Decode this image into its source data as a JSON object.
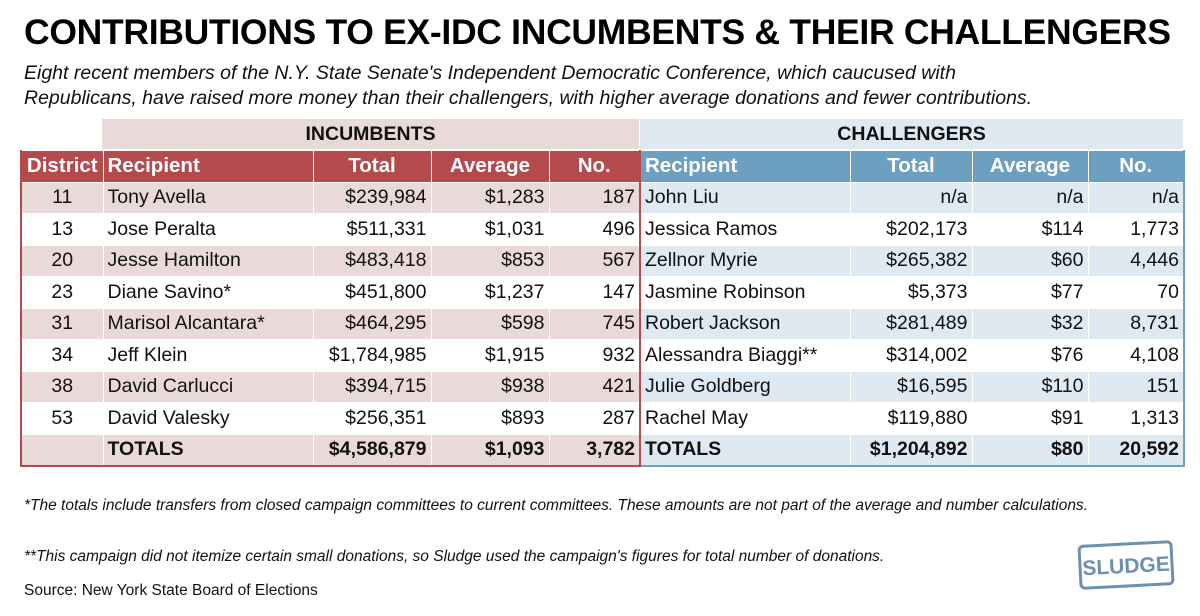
{
  "title": "CONTRIBUTIONS TO EX-IDC INCUMBENTS & THEIR CHALLENGERS",
  "subtitle_line1": "Eight recent members of the N.Y. State Senate's Independent Democratic Conference, which caucused with",
  "subtitle_line2": "Republicans, have raised more money than their challengers, with higher average donations and fewer contributions.",
  "groups": {
    "incumbents": "INCUMBENTS",
    "challengers": "CHALLENGERS"
  },
  "headers": {
    "district": "District",
    "inc_recipient": "Recipient",
    "inc_total": "Total",
    "inc_average": "Average",
    "inc_no": "No.",
    "chal_recipient": "Recipient",
    "chal_total": "Total",
    "chal_average": "Average",
    "chal_no": "No."
  },
  "rows": [
    {
      "district": "11",
      "inc_name": "Tony Avella",
      "inc_total": "$239,984",
      "inc_avg": "$1,283",
      "inc_no": "187",
      "chal_name": "John Liu",
      "chal_total": "n/a",
      "chal_avg": "n/a",
      "chal_no": "n/a"
    },
    {
      "district": "13",
      "inc_name": "Jose Peralta",
      "inc_total": "$511,331",
      "inc_avg": "$1,031",
      "inc_no": "496",
      "chal_name": "Jessica Ramos",
      "chal_total": "$202,173",
      "chal_avg": "$114",
      "chal_no": "1,773"
    },
    {
      "district": "20",
      "inc_name": "Jesse Hamilton",
      "inc_total": "$483,418",
      "inc_avg": "$853",
      "inc_no": "567",
      "chal_name": "Zellnor Myrie",
      "chal_total": "$265,382",
      "chal_avg": "$60",
      "chal_no": "4,446"
    },
    {
      "district": "23",
      "inc_name": "Diane Savino*",
      "inc_total": "$451,800",
      "inc_avg": "$1,237",
      "inc_no": "147",
      "chal_name": "Jasmine Robinson",
      "chal_total": "$5,373",
      "chal_avg": "$77",
      "chal_no": "70"
    },
    {
      "district": "31",
      "inc_name": "Marisol Alcantara*",
      "inc_total": "$464,295",
      "inc_avg": "$598",
      "inc_no": "745",
      "chal_name": "Robert Jackson",
      "chal_total": "$281,489",
      "chal_avg": "$32",
      "chal_no": "8,731"
    },
    {
      "district": "34",
      "inc_name": "Jeff Klein",
      "inc_total": "$1,784,985",
      "inc_avg": "$1,915",
      "inc_no": "932",
      "chal_name": "Alessandra Biaggi**",
      "chal_total": "$314,002",
      "chal_avg": "$76",
      "chal_no": "4,108"
    },
    {
      "district": "38",
      "inc_name": "David Carlucci",
      "inc_total": "$394,715",
      "inc_avg": "$938",
      "inc_no": "421",
      "chal_name": "Julie Goldberg",
      "chal_total": "$16,595",
      "chal_avg": "$110",
      "chal_no": "151"
    },
    {
      "district": "53",
      "inc_name": "David Valesky",
      "inc_total": "$256,351",
      "inc_avg": "$893",
      "inc_no": "287",
      "chal_name": "Rachel May",
      "chal_total": "$119,880",
      "chal_avg": "$91",
      "chal_no": "1,313"
    }
  ],
  "totals": {
    "inc_label": "TOTALS",
    "inc_total": "$4,586,879",
    "inc_avg": "$1,093",
    "inc_no": "3,782",
    "chal_label": "TOTALS",
    "chal_total": "$1,204,892",
    "chal_avg": "$80",
    "chal_no": "20,592"
  },
  "footnote1": "*The totals include transfers from closed campaign committees to current committees. These amounts are not part of the average and number calculations.",
  "footnote2": "**This campaign did not itemize certain small donations, so Sludge used the campaign's figures for total number of donations.",
  "source": "Source: New York State Board of Elections",
  "logo_text": "SLUDGE",
  "colors": {
    "incumbent_header": "#b44a4c",
    "incumbent_band": "#ead9d9",
    "challenger_header": "#6d9fc0",
    "challenger_band": "#dfe9f1",
    "logo": "#6d8fb0"
  }
}
